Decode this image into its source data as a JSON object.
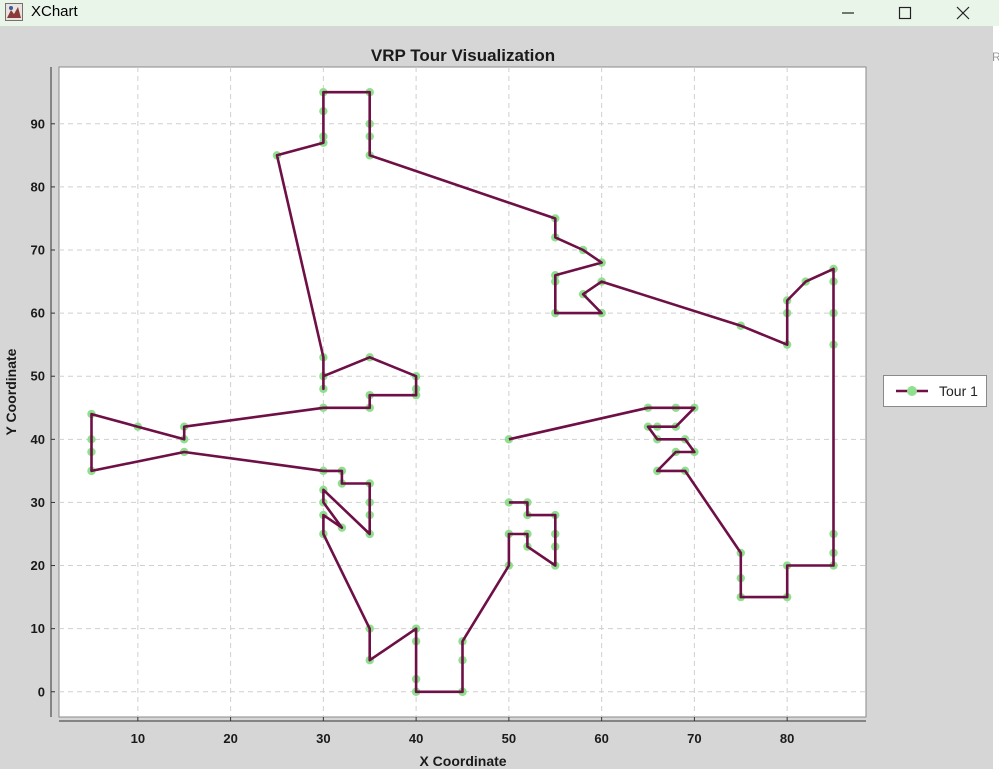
{
  "window": {
    "title": "XChart",
    "minimize_glyph": "—",
    "maximize_glyph": "☐",
    "close_glyph": "✕",
    "icon": "xchart-app-icon",
    "edge_letter": "R"
  },
  "colors": {
    "line": "#6e0f46",
    "marker": "#8ee08e",
    "grid": "#cfcfcf",
    "plot_bg": "#ffffff",
    "window_bg": "#d6d6d6"
  },
  "chart_data": {
    "type": "line",
    "title": "VRP Tour Visualization",
    "xlabel": "X Coordinate",
    "ylabel": "Y Coordinate",
    "xlim": [
      1.5,
      88.5
    ],
    "ylim": [
      -4,
      99
    ],
    "xticks": [
      10,
      20,
      30,
      40,
      50,
      60,
      70,
      80
    ],
    "yticks": [
      0,
      10,
      20,
      30,
      40,
      50,
      60,
      70,
      80,
      90
    ],
    "grid": true,
    "legend_position": "outside-right",
    "series": [
      {
        "name": "Tour 1",
        "x": [
          50,
          52,
          52,
          55,
          55,
          55,
          55,
          52,
          52,
          50,
          50,
          45,
          45,
          45,
          45,
          40,
          40,
          40,
          40,
          35,
          35,
          30,
          30,
          32,
          30,
          30,
          35,
          35,
          35,
          35,
          32,
          32,
          30,
          15,
          5,
          5,
          5,
          5,
          10,
          15,
          15,
          30,
          35,
          35,
          40,
          40,
          40,
          35,
          30,
          30,
          30,
          25,
          30,
          30,
          30,
          30,
          35,
          35,
          35,
          35,
          55,
          55,
          58,
          60,
          55,
          55,
          55,
          60,
          58,
          60,
          75,
          80,
          80,
          80,
          82,
          85,
          85,
          85,
          85,
          85,
          85,
          85,
          80,
          80,
          75,
          75,
          75,
          69,
          66,
          68,
          70,
          69,
          66,
          65,
          66,
          68,
          70,
          68,
          65,
          50
        ],
        "y": [
          30,
          30,
          28,
          28,
          25,
          23,
          20,
          23,
          25,
          25,
          20,
          8,
          5,
          0,
          0,
          0,
          2,
          8,
          10,
          5,
          10,
          25,
          28,
          26,
          30,
          32,
          25,
          28,
          30,
          33,
          33,
          35,
          35,
          38,
          35,
          38,
          40,
          44,
          42,
          40,
          42,
          45,
          45,
          47,
          47,
          48,
          50,
          53,
          50,
          48,
          53,
          85,
          87,
          88,
          92,
          95,
          95,
          90,
          88,
          85,
          75,
          72,
          70,
          68,
          66,
          65,
          60,
          60,
          63,
          65,
          58,
          55,
          60,
          62,
          65,
          67,
          65,
          60,
          55,
          25,
          22,
          20,
          20,
          15,
          15,
          18,
          22,
          35,
          35,
          38,
          38,
          40,
          40,
          42,
          42,
          42,
          45,
          45,
          45,
          40
        ]
      }
    ]
  }
}
